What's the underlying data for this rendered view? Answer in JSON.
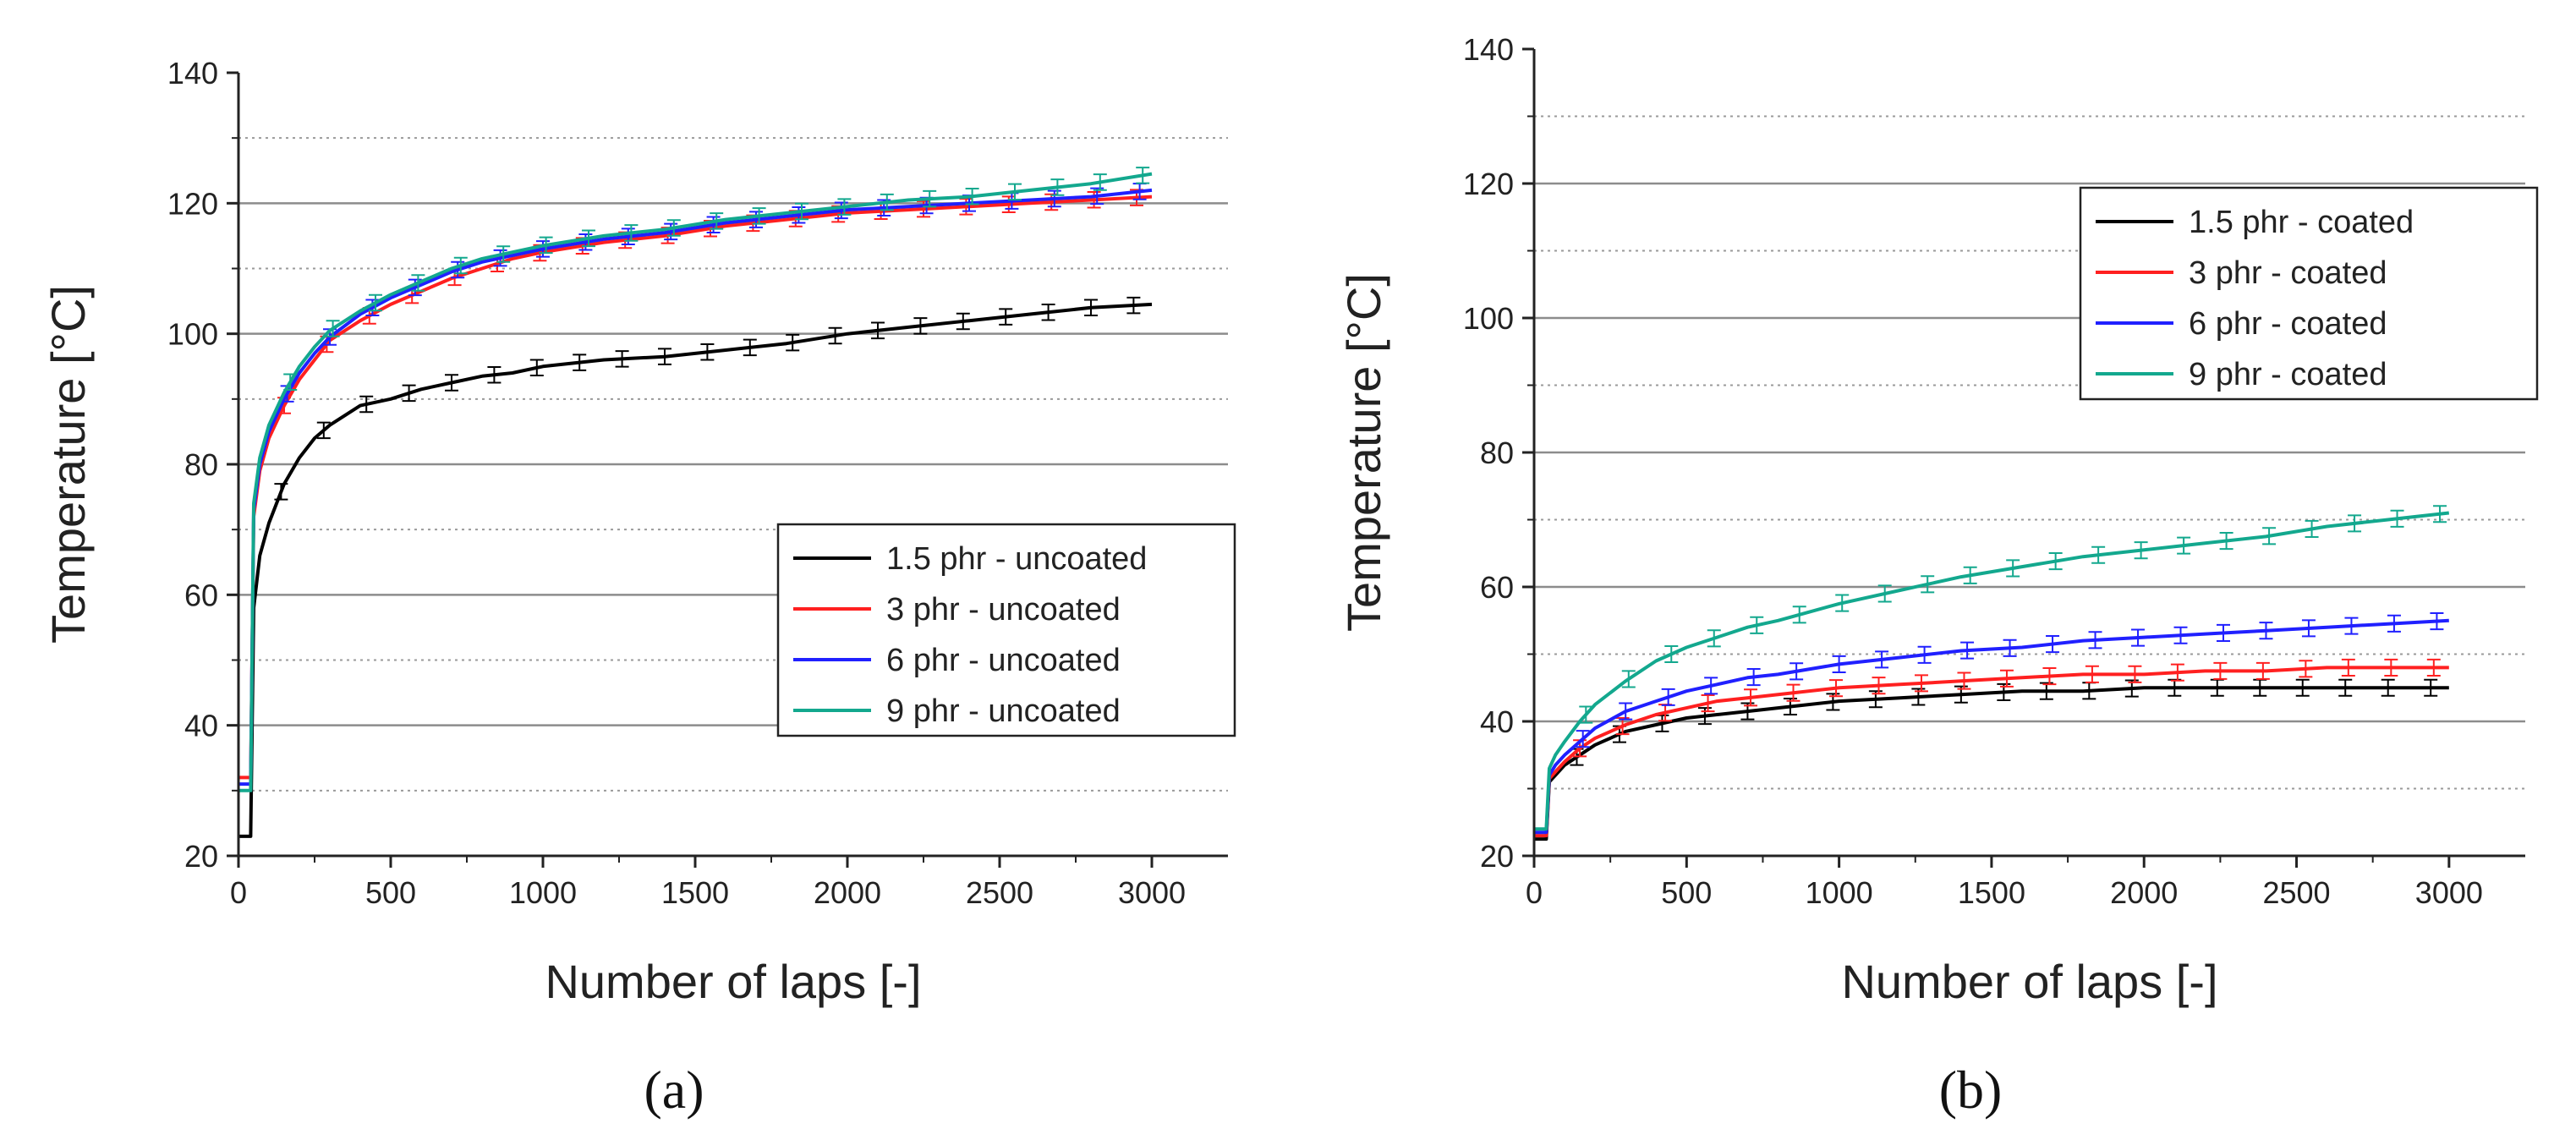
{
  "chart_data": [
    {
      "type": "line",
      "panel_label": "(a)",
      "xlabel": "Number of laps [-]",
      "ylabel": "Temperature [°C]",
      "xlim": [
        0,
        3250
      ],
      "ylim": [
        20,
        140
      ],
      "xticks": [
        0,
        500,
        1000,
        1500,
        2000,
        2500,
        3000
      ],
      "yticks": [
        20,
        40,
        60,
        80,
        100,
        120,
        140
      ],
      "major_grid_y": [
        20,
        40,
        60,
        80,
        100,
        120
      ],
      "minor_grid_y": [
        30,
        50,
        70,
        90,
        110,
        130
      ],
      "legend_position": "bottom-right",
      "series": [
        {
          "name": "1.5 phr - uncoated",
          "color": "#000000",
          "x": [
            0,
            40,
            50,
            70,
            100,
            150,
            200,
            250,
            300,
            400,
            500,
            600,
            700,
            800,
            900,
            1000,
            1200,
            1400,
            1600,
            1800,
            2000,
            2200,
            2400,
            2600,
            2800,
            3000
          ],
          "y": [
            23,
            23,
            58,
            66,
            71,
            77,
            81,
            84,
            86,
            89,
            90,
            91.5,
            92.5,
            93.5,
            94,
            95,
            96,
            96.5,
            97.5,
            98.5,
            100,
            101,
            102,
            103,
            104,
            104.5
          ]
        },
        {
          "name": "3 phr - uncoated",
          "color": "#ff2020",
          "x": [
            0,
            40,
            50,
            70,
            100,
            150,
            200,
            250,
            300,
            400,
            500,
            600,
            700,
            800,
            900,
            1000,
            1200,
            1400,
            1600,
            1800,
            2000,
            2200,
            2400,
            2600,
            2800,
            3000
          ],
          "y": [
            32,
            32,
            72,
            79,
            84,
            89,
            93,
            96,
            99,
            102,
            104.5,
            106.5,
            108.5,
            110,
            111.5,
            112.5,
            114,
            115,
            116.5,
            117.5,
            118.5,
            119,
            119.5,
            120,
            120.5,
            121
          ]
        },
        {
          "name": "6 phr - uncoated",
          "color": "#2020ff",
          "x": [
            0,
            40,
            50,
            70,
            100,
            150,
            200,
            250,
            300,
            400,
            500,
            600,
            700,
            800,
            900,
            1000,
            1200,
            1400,
            1600,
            1800,
            2000,
            2200,
            2400,
            2600,
            2800,
            3000
          ],
          "y": [
            31,
            31,
            73,
            80,
            85,
            90,
            94,
            97,
            99.5,
            103,
            105.5,
            107.5,
            109.5,
            111,
            112,
            113,
            114.5,
            115.5,
            117,
            118,
            119,
            119.5,
            120,
            120.5,
            121,
            122
          ]
        },
        {
          "name": "9 phr - uncoated",
          "color": "#13a88e",
          "x": [
            0,
            40,
            50,
            70,
            100,
            150,
            200,
            250,
            300,
            400,
            500,
            600,
            700,
            800,
            900,
            1000,
            1200,
            1400,
            1600,
            1800,
            2000,
            2200,
            2400,
            2600,
            2800,
            3000
          ],
          "y": [
            30,
            30,
            74,
            81,
            86,
            91,
            95,
            98,
            100.5,
            103.5,
            106,
            108,
            110,
            111.5,
            112.5,
            113.5,
            115,
            116,
            117.5,
            118.5,
            119.5,
            120.5,
            121,
            122,
            123,
            124.5
          ]
        }
      ]
    },
    {
      "type": "line",
      "panel_label": "(b)",
      "xlabel": "Number of laps [-]",
      "ylabel": "Temperature [°C]",
      "xlim": [
        0,
        3250
      ],
      "ylim": [
        20,
        140
      ],
      "xticks": [
        0,
        500,
        1000,
        1500,
        2000,
        2500,
        3000
      ],
      "yticks": [
        20,
        40,
        60,
        80,
        100,
        120,
        140
      ],
      "major_grid_y": [
        20,
        40,
        60,
        80,
        100,
        120
      ],
      "minor_grid_y": [
        30,
        50,
        70,
        90,
        110,
        130
      ],
      "legend_position": "top-right",
      "series": [
        {
          "name": "1.5 phr - coated",
          "color": "#000000",
          "x": [
            0,
            40,
            50,
            70,
            100,
            150,
            200,
            300,
            400,
            500,
            600,
            700,
            800,
            1000,
            1200,
            1400,
            1600,
            1800,
            2000,
            2200,
            2400,
            2600,
            2800,
            3000
          ],
          "y": [
            22.5,
            22.5,
            31,
            32,
            33.5,
            35,
            36.5,
            38.5,
            39.5,
            40.5,
            41,
            41.5,
            42,
            43,
            43.5,
            44,
            44.5,
            44.5,
            45,
            45,
            45,
            45,
            45,
            45
          ]
        },
        {
          "name": "3 phr - coated",
          "color": "#ff2020",
          "x": [
            0,
            40,
            50,
            70,
            100,
            150,
            200,
            300,
            400,
            500,
            600,
            700,
            800,
            1000,
            1200,
            1400,
            1600,
            1800,
            2000,
            2200,
            2400,
            2600,
            2800,
            3000
          ],
          "y": [
            23,
            23,
            31.5,
            32.5,
            34,
            36,
            37.5,
            39.5,
            41,
            42,
            43,
            43.5,
            44,
            45,
            45.5,
            46,
            46.5,
            47,
            47,
            47.5,
            47.5,
            48,
            48,
            48
          ]
        },
        {
          "name": "6 phr - coated",
          "color": "#2020ff",
          "x": [
            0,
            40,
            50,
            70,
            100,
            150,
            200,
            300,
            400,
            500,
            600,
            700,
            800,
            1000,
            1200,
            1400,
            1600,
            1800,
            2000,
            2200,
            2400,
            2600,
            2800,
            3000
          ],
          "y": [
            23.5,
            23.5,
            32,
            33.5,
            35,
            37,
            39,
            41.5,
            43,
            44.5,
            45.5,
            46.5,
            47,
            48.5,
            49.5,
            50.5,
            51,
            52,
            52.5,
            53,
            53.5,
            54,
            54.5,
            55
          ]
        },
        {
          "name": "9 phr - coated",
          "color": "#13a88e",
          "x": [
            0,
            40,
            50,
            70,
            100,
            150,
            200,
            300,
            400,
            500,
            600,
            700,
            800,
            1000,
            1200,
            1400,
            1600,
            1800,
            2000,
            2200,
            2400,
            2600,
            2800,
            3000
          ],
          "y": [
            24,
            24,
            33,
            35,
            37,
            40,
            42.5,
            46,
            49,
            51,
            52.5,
            54,
            55,
            57.5,
            59.5,
            61.5,
            63,
            64.5,
            65.5,
            66.5,
            67.5,
            69,
            70,
            71
          ]
        }
      ]
    }
  ]
}
